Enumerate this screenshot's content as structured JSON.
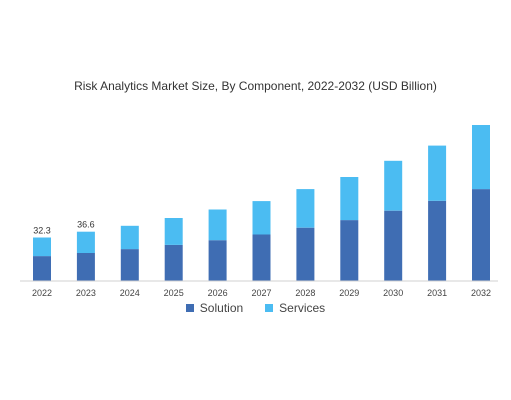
{
  "chart_data": {
    "type": "bar",
    "stacked": true,
    "title": "Risk Analytics Market Size, By Component, 2022-2032 (USD Billion)",
    "xlabel": "",
    "ylabel": "",
    "categories": [
      "2022",
      "2023",
      "2024",
      "2025",
      "2026",
      "2027",
      "2028",
      "2029",
      "2030",
      "2031",
      "2032"
    ],
    "series": [
      {
        "name": "Solution",
        "color": "#3f6db3",
        "values": [
          18.5,
          20.8,
          23.7,
          26.8,
          30.3,
          34.5,
          39.6,
          45.2,
          52.2,
          59.5,
          68.2
        ]
      },
      {
        "name": "Services",
        "color": "#4bbcf2",
        "values": [
          13.8,
          15.8,
          17.3,
          20.0,
          22.8,
          24.8,
          28.6,
          32.0,
          37.0,
          41.0,
          47.6
        ]
      }
    ],
    "data_labels": [
      "32.3",
      "36.6",
      "",
      "",
      "",
      "",
      "",
      "",
      "",
      "",
      ""
    ],
    "ylim": [
      0,
      115.8
    ],
    "grid": false,
    "legend": "bottom"
  }
}
